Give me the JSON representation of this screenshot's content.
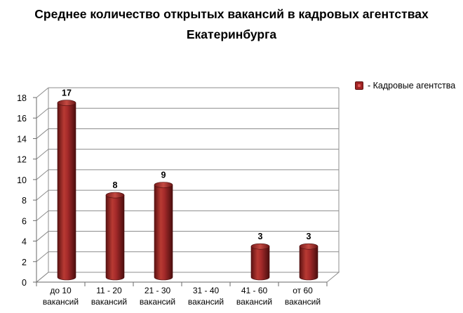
{
  "chart_data": {
    "type": "bar",
    "title_lines": [
      "Среднее количество открытых вакансий в кадровых агентствах",
      "Екатеринбурга"
    ],
    "categories": [
      [
        "до 10",
        "вакансий"
      ],
      [
        "11 - 20",
        "вакансий"
      ],
      [
        "21 - 30",
        "вакансий"
      ],
      [
        "31 - 40",
        "вакансий"
      ],
      [
        "41 - 60",
        "вакансий"
      ],
      [
        "от 60",
        "вакансий"
      ]
    ],
    "series": [
      {
        "name": "- Кадровые агентства",
        "values": [
          17,
          8,
          9,
          0,
          3,
          3
        ],
        "color": "#a52a2a"
      }
    ],
    "data_labels": [
      "17",
      "8",
      "9",
      "",
      "3",
      "3"
    ],
    "ylim": [
      0,
      18
    ],
    "yticks": [
      0,
      2,
      4,
      6,
      8,
      10,
      12,
      14,
      16,
      18
    ],
    "grid": true,
    "legend_position": "right",
    "style": "3d-cylinder",
    "colors": {
      "bar": "#a52a2a",
      "bar_dark": "#5c1212",
      "bar_light": "#d9605a",
      "grid": "#8c8c8c"
    }
  }
}
